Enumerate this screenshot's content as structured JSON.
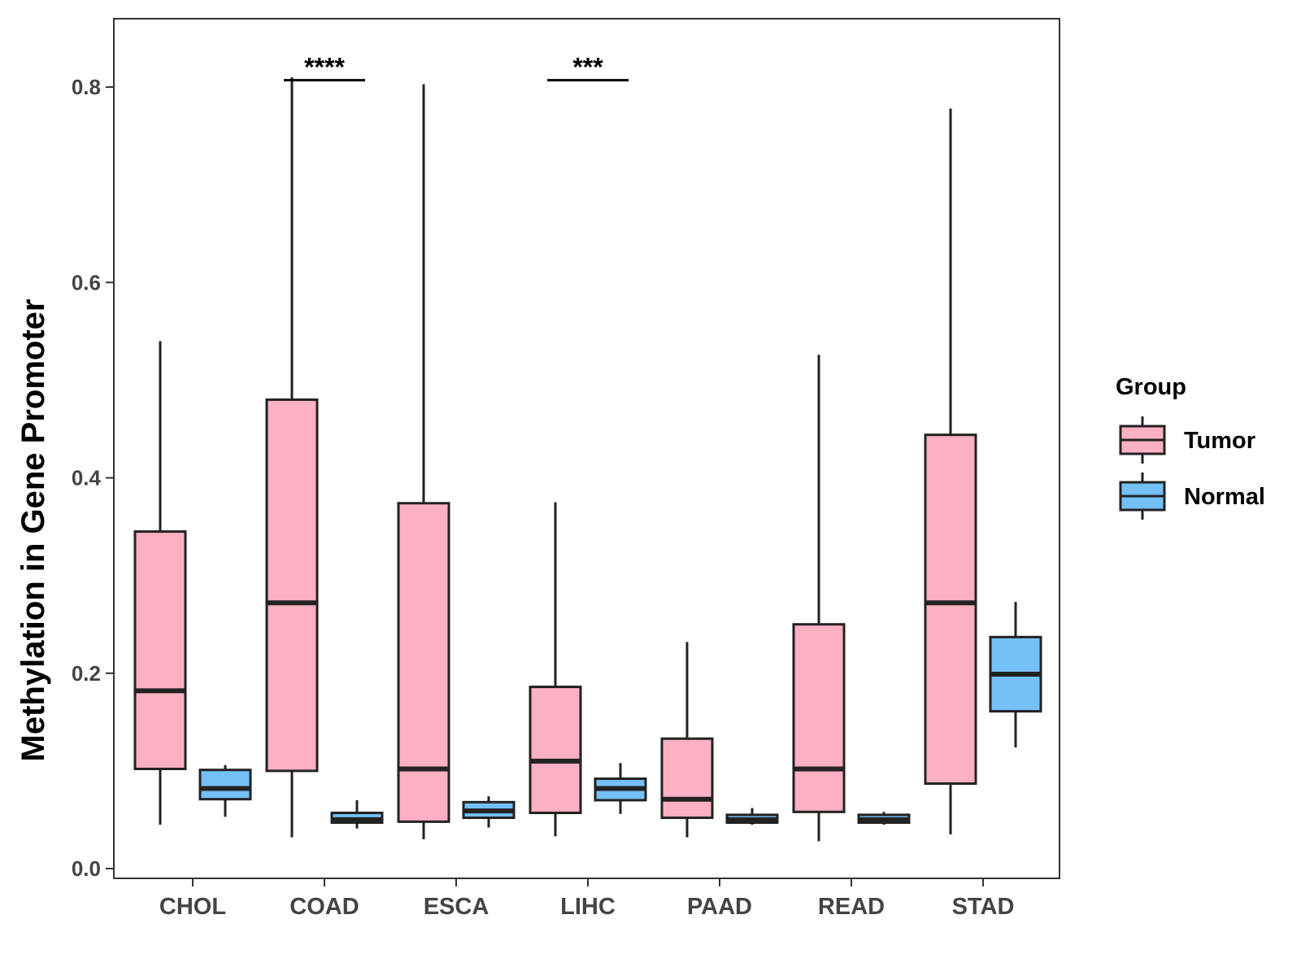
{
  "chart_data": {
    "type": "boxplot",
    "title": "",
    "xlabel": "",
    "ylabel": "Methylation in Gene Promoter",
    "ylim": [
      -0.01,
      0.87
    ],
    "yticks": [
      "0.0",
      "0.2",
      "0.4",
      "0.6",
      "0.8"
    ],
    "ytick_values": [
      0.0,
      0.2,
      0.4,
      0.6,
      0.8
    ],
    "grid": false,
    "categories": [
      "CHOL",
      "COAD",
      "ESCA",
      "LIHC",
      "PAAD",
      "READ",
      "STAD"
    ],
    "legend": {
      "title": "Group",
      "position": "right",
      "entries": [
        "Tumor",
        "Normal"
      ]
    },
    "colors": {
      "Tumor": "#FBB0C3",
      "Normal": "#74C0F7",
      "outline": "#222222"
    },
    "series": [
      {
        "name": "Tumor",
        "boxes": [
          {
            "category": "CHOL",
            "min": 0.045,
            "q1": 0.102,
            "median": 0.182,
            "q3": 0.345,
            "max": 0.54
          },
          {
            "category": "COAD",
            "min": 0.032,
            "q1": 0.1,
            "median": 0.272,
            "q3": 0.48,
            "max": 0.81
          },
          {
            "category": "ESCA",
            "min": 0.03,
            "q1": 0.048,
            "median": 0.102,
            "q3": 0.374,
            "max": 0.803
          },
          {
            "category": "LIHC",
            "min": 0.033,
            "q1": 0.057,
            "median": 0.11,
            "q3": 0.186,
            "max": 0.375
          },
          {
            "category": "PAAD",
            "min": 0.032,
            "q1": 0.052,
            "median": 0.071,
            "q3": 0.133,
            "max": 0.232
          },
          {
            "category": "READ",
            "min": 0.028,
            "q1": 0.058,
            "median": 0.102,
            "q3": 0.25,
            "max": 0.526
          },
          {
            "category": "STAD",
            "min": 0.035,
            "q1": 0.087,
            "median": 0.272,
            "q3": 0.444,
            "max": 0.778
          }
        ]
      },
      {
        "name": "Normal",
        "boxes": [
          {
            "category": "CHOL",
            "min": 0.053,
            "q1": 0.071,
            "median": 0.082,
            "q3": 0.101,
            "max": 0.106
          },
          {
            "category": "COAD",
            "min": 0.041,
            "q1": 0.047,
            "median": 0.05,
            "q3": 0.057,
            "max": 0.07
          },
          {
            "category": "ESCA",
            "min": 0.042,
            "q1": 0.052,
            "median": 0.059,
            "q3": 0.068,
            "max": 0.074
          },
          {
            "category": "LIHC",
            "min": 0.056,
            "q1": 0.07,
            "median": 0.082,
            "q3": 0.092,
            "max": 0.108
          },
          {
            "category": "PAAD",
            "min": 0.045,
            "q1": 0.047,
            "median": 0.05,
            "q3": 0.055,
            "max": 0.062
          },
          {
            "category": "READ",
            "min": 0.045,
            "q1": 0.047,
            "median": 0.05,
            "q3": 0.055,
            "max": 0.058
          },
          {
            "category": "STAD",
            "min": 0.124,
            "q1": 0.161,
            "median": 0.199,
            "q3": 0.237,
            "max": 0.273
          }
        ]
      }
    ],
    "annotations": [
      {
        "category": "COAD",
        "label": "****",
        "y": 0.807
      },
      {
        "category": "LIHC",
        "label": "***",
        "y": 0.807
      }
    ]
  }
}
